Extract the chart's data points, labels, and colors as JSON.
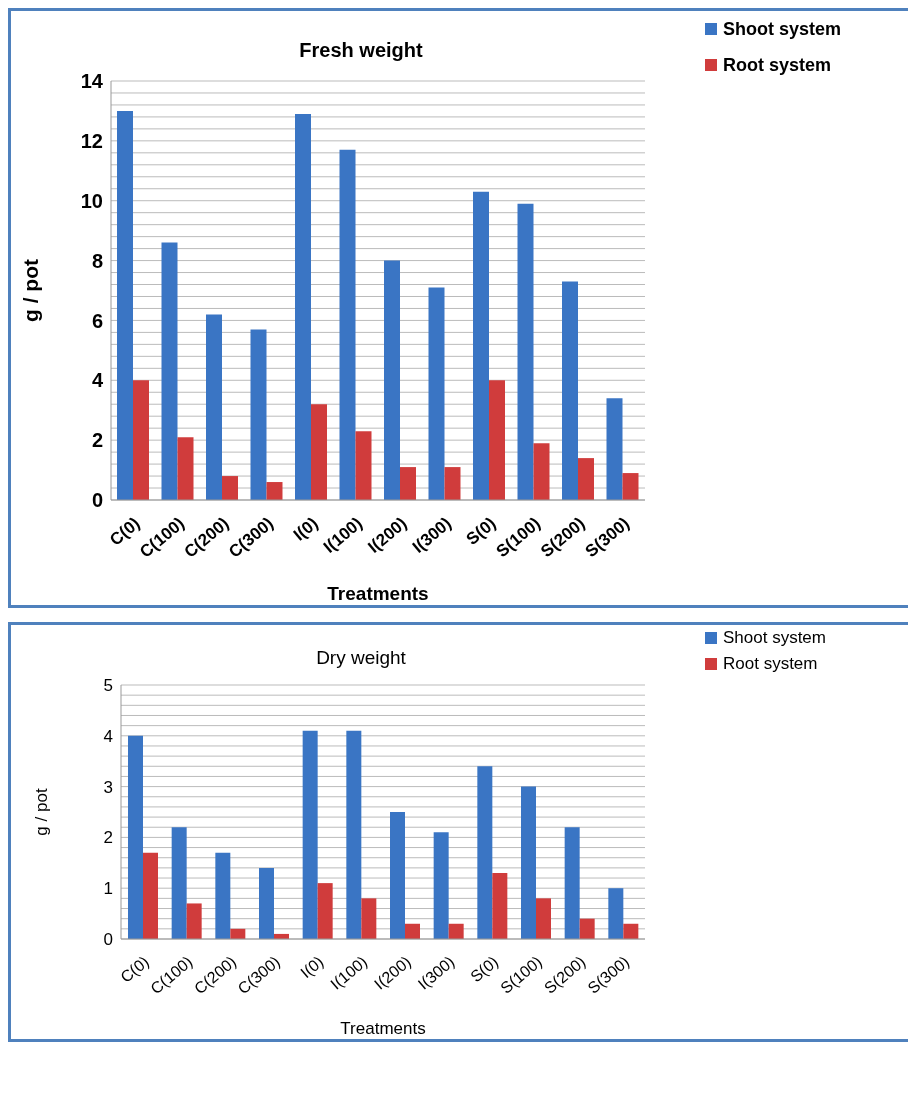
{
  "chart_data": [
    {
      "type": "bar",
      "title": "Fresh  weight",
      "xlabel": "Treatments",
      "ylabel": "g / pot",
      "categories": [
        "C(0)",
        "C(100)",
        "C(200)",
        "C(300)",
        "I(0)",
        "I(100)",
        "I(200)",
        "I(300)",
        "S(0)",
        "S(100)",
        "S(200)",
        "S(300)"
      ],
      "series": [
        {
          "name": "Shoot system",
          "color": "#3a75c4",
          "values": [
            13.0,
            8.6,
            6.2,
            5.7,
            12.9,
            11.7,
            8.0,
            7.1,
            10.3,
            9.9,
            7.3,
            3.4
          ]
        },
        {
          "name": "Root system",
          "color": "#d03c3c",
          "values": [
            4.0,
            2.1,
            0.8,
            0.6,
            3.2,
            2.3,
            1.1,
            1.1,
            4.0,
            1.9,
            1.4,
            0.9
          ]
        }
      ],
      "ylim": [
        0,
        14
      ],
      "yticks": [
        0,
        {
          "value": 0.4,
          "label": null
        },
        {
          "value": 0.8,
          "label": null
        },
        {
          "value": 1.2,
          "label": null
        },
        {
          "value": 1.6,
          "label": null
        },
        2,
        {
          "value": 2.4,
          "label": null
        },
        {
          "value": 2.8,
          "label": null
        },
        {
          "value": 3.2,
          "label": null
        },
        {
          "value": 3.6,
          "label": null
        },
        4,
        {
          "value": 4.4,
          "label": null
        },
        {
          "value": 4.8,
          "label": null
        },
        {
          "value": 5.2,
          "label": null
        },
        {
          "value": 5.6,
          "label": null
        },
        6,
        {
          "value": 6.4,
          "label": null
        },
        {
          "value": 6.8,
          "label": null
        },
        {
          "value": 7.2,
          "label": null
        },
        {
          "value": 7.6,
          "label": null
        },
        8,
        {
          "value": 8.4,
          "label": null
        },
        {
          "value": 8.8,
          "label": null
        },
        {
          "value": 9.2,
          "label": null
        },
        {
          "value": 9.6,
          "label": null
        },
        10,
        {
          "value": 10.4,
          "label": null
        },
        {
          "value": 10.8,
          "label": null
        },
        {
          "value": 11.2,
          "label": null
        },
        {
          "value": 11.6,
          "label": null
        },
        12,
        {
          "value": 12.4,
          "label": null
        },
        {
          "value": 12.8,
          "label": null
        },
        {
          "value": 13.2,
          "label": null
        },
        {
          "value": 13.6,
          "label": null
        },
        14
      ],
      "grid": "y",
      "legend": "top right"
    },
    {
      "type": "bar",
      "title": "Dry  weight",
      "xlabel": "Treatments",
      "ylabel": "g / pot",
      "categories": [
        "C(0)",
        "C(100)",
        "C(200)",
        "C(300)",
        "I(0)",
        "I(100)",
        "I(200)",
        "I(300)",
        "S(0)",
        "S(100)",
        "S(200)",
        "S(300)"
      ],
      "series": [
        {
          "name": "Shoot system",
          "color": "#3a75c4",
          "values": [
            4.0,
            2.2,
            1.7,
            1.4,
            4.1,
            4.1,
            2.5,
            2.1,
            3.4,
            3.0,
            2.2,
            1.0
          ]
        },
        {
          "name": "Root system",
          "color": "#d03c3c",
          "values": [
            1.7,
            0.7,
            0.2,
            0.1,
            1.1,
            0.8,
            0.3,
            0.3,
            1.3,
            0.8,
            0.4,
            0.3
          ]
        }
      ],
      "ylim": [
        0,
        5
      ],
      "yticks": [
        0,
        {
          "value": 0.2,
          "label": null
        },
        {
          "value": 0.4,
          "label": null
        },
        {
          "value": 0.6,
          "label": null
        },
        {
          "value": 0.8,
          "label": null
        },
        1,
        {
          "value": 1.2,
          "label": null
        },
        {
          "value": 1.4,
          "label": null
        },
        {
          "value": 1.6,
          "label": null
        },
        {
          "value": 1.8,
          "label": null
        },
        2,
        {
          "value": 2.2,
          "label": null
        },
        {
          "value": 2.4,
          "label": null
        },
        {
          "value": 2.6,
          "label": null
        },
        {
          "value": 2.8,
          "label": null
        },
        3,
        {
          "value": 3.2,
          "label": null
        },
        {
          "value": 3.4,
          "label": null
        },
        {
          "value": 3.6,
          "label": null
        },
        {
          "value": 3.8,
          "label": null
        },
        4,
        {
          "value": 4.2,
          "label": null
        },
        {
          "value": 4.4,
          "label": null
        },
        {
          "value": 4.6,
          "label": null
        },
        {
          "value": 4.8,
          "label": null
        },
        5
      ],
      "grid": "y",
      "legend": "top right"
    }
  ]
}
